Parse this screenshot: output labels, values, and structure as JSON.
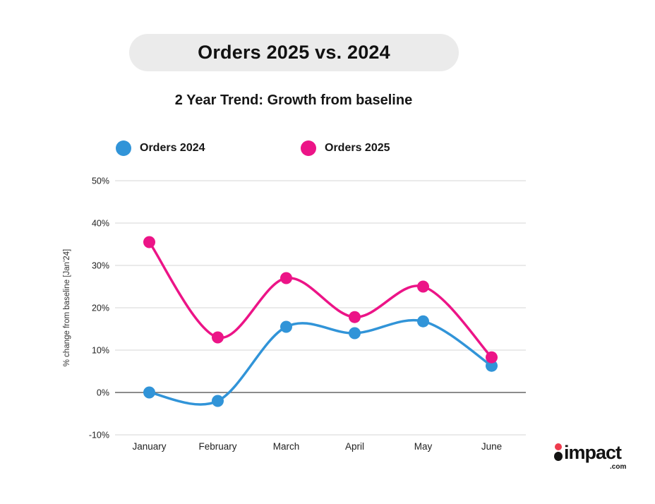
{
  "header": {
    "title": "Orders 2025 vs. 2024",
    "subtitle": "2 Year Trend: Growth from baseline",
    "pill_color": "#ebebeb"
  },
  "chart_data": {
    "type": "line",
    "categories": [
      "January",
      "February",
      "March",
      "April",
      "May",
      "June"
    ],
    "series": [
      {
        "name": "Orders 2024",
        "color": "#3194d8",
        "values": [
          0,
          -2,
          15.5,
          14,
          16.8,
          6.3
        ]
      },
      {
        "name": "Orders 2025",
        "color": "#ec1487",
        "values": [
          35.5,
          13,
          27,
          17.8,
          25,
          8.3
        ]
      }
    ],
    "title": "Orders 2025 vs. 2024",
    "xlabel": "",
    "ylabel": "% change from baseline [Jan'24]",
    "yticks": [
      50,
      40,
      30,
      20,
      10,
      0,
      -10
    ],
    "ytick_suffix": "%",
    "ylim": [
      -10,
      50
    ],
    "grid": true,
    "gridline_color": "#dddddd",
    "zeroline_color": "#666666",
    "tick_label_color": "#222222",
    "legend_position": "top"
  },
  "logo": {
    "text": "impact",
    "suffix": ".com",
    "dot_top_color": "#ee3b4d",
    "dot_bottom_color": "#131313"
  }
}
